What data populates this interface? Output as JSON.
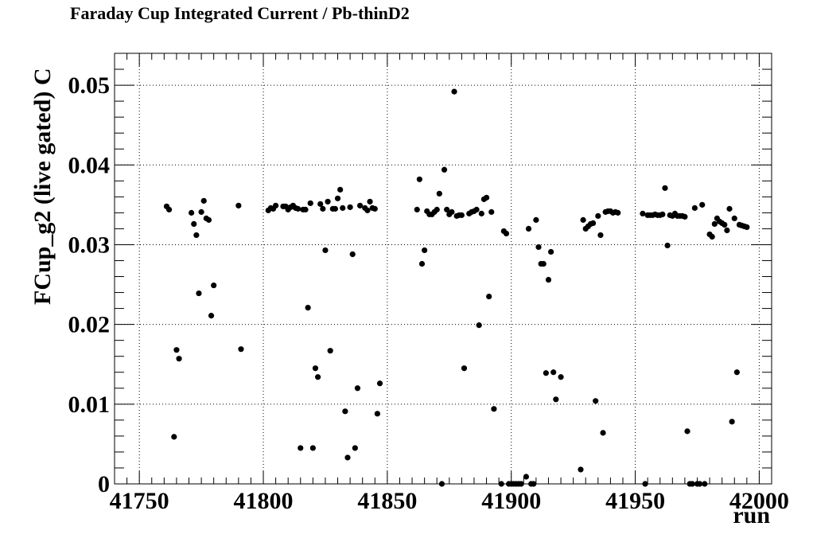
{
  "chart_data": {
    "type": "scatter",
    "title": "Faraday Cup Integrated Current / Pb-thinD2",
    "xlabel": "run",
    "ylabel": "FCup_g2 (live gated) C",
    "xlim": [
      41740,
      42005
    ],
    "ylim": [
      0,
      0.054
    ],
    "xticks": [
      41750,
      41800,
      41850,
      41900,
      41950,
      42000
    ],
    "yticks": [
      0,
      0.01,
      0.02,
      0.03,
      0.04,
      0.05
    ],
    "ytick_labels": [
      "0",
      "0.01",
      "0.02",
      "0.03",
      "0.04",
      "0.05"
    ],
    "grid": true,
    "marker_color": "#000000",
    "points": [
      [
        41761,
        0.0348
      ],
      [
        41762,
        0.0344
      ],
      [
        41764,
        0.0059
      ],
      [
        41765,
        0.0168
      ],
      [
        41766,
        0.0157
      ],
      [
        41771,
        0.034
      ],
      [
        41772,
        0.0326
      ],
      [
        41773,
        0.0312
      ],
      [
        41774,
        0.0239
      ],
      [
        41775,
        0.0341
      ],
      [
        41776,
        0.0355
      ],
      [
        41777,
        0.0333
      ],
      [
        41778,
        0.0331
      ],
      [
        41779,
        0.0211
      ],
      [
        41780,
        0.0249
      ],
      [
        41790,
        0.0349
      ],
      [
        41791,
        0.0169
      ],
      [
        41802,
        0.0343
      ],
      [
        41803,
        0.0346
      ],
      [
        41804,
        0.0345
      ],
      [
        41805,
        0.0349
      ],
      [
        41808,
        0.0348
      ],
      [
        41809,
        0.0348
      ],
      [
        41810,
        0.0344
      ],
      [
        41811,
        0.0347
      ],
      [
        41812,
        0.0349
      ],
      [
        41813,
        0.0346
      ],
      [
        41814,
        0.0345
      ],
      [
        41815,
        0.0045
      ],
      [
        41816,
        0.0344
      ],
      [
        41817,
        0.0344
      ],
      [
        41818,
        0.0221
      ],
      [
        41819,
        0.0352
      ],
      [
        41820,
        0.0045
      ],
      [
        41821,
        0.0145
      ],
      [
        41822,
        0.0134
      ],
      [
        41823,
        0.0351
      ],
      [
        41824,
        0.0345
      ],
      [
        41825,
        0.0293
      ],
      [
        41826,
        0.0354
      ],
      [
        41827,
        0.0167
      ],
      [
        41828,
        0.0345
      ],
      [
        41829,
        0.0345
      ],
      [
        41830,
        0.0358
      ],
      [
        41831,
        0.0369
      ],
      [
        41832,
        0.0346
      ],
      [
        41833,
        0.0091
      ],
      [
        41834,
        0.0033
      ],
      [
        41835,
        0.0347
      ],
      [
        41836,
        0.0288
      ],
      [
        41837,
        0.0045
      ],
      [
        41838,
        0.012
      ],
      [
        41839,
        0.0349
      ],
      [
        41841,
        0.0346
      ],
      [
        41842,
        0.0343
      ],
      [
        41843,
        0.0354
      ],
      [
        41844,
        0.0346
      ],
      [
        41845,
        0.0345
      ],
      [
        41846,
        0.0088
      ],
      [
        41847,
        0.0126
      ],
      [
        41862,
        0.0344
      ],
      [
        41863,
        0.0382
      ],
      [
        41864,
        0.0276
      ],
      [
        41865,
        0.0293
      ],
      [
        41866,
        0.0342
      ],
      [
        41867,
        0.0338
      ],
      [
        41868,
        0.0338
      ],
      [
        41869,
        0.0341
      ],
      [
        41870,
        0.0344
      ],
      [
        41871,
        0.0364
      ],
      [
        41872,
        0.0
      ],
      [
        41873,
        0.0394
      ],
      [
        41874,
        0.0344
      ],
      [
        41875,
        0.0338
      ],
      [
        41876,
        0.0341
      ],
      [
        41877,
        0.0492
      ],
      [
        41878,
        0.0336
      ],
      [
        41879,
        0.0337
      ],
      [
        41880,
        0.0337
      ],
      [
        41881,
        0.0145
      ],
      [
        41883,
        0.0339
      ],
      [
        41884,
        0.0341
      ],
      [
        41885,
        0.0342
      ],
      [
        41886,
        0.0344
      ],
      [
        41887,
        0.0199
      ],
      [
        41888,
        0.0339
      ],
      [
        41889,
        0.0357
      ],
      [
        41890,
        0.0359
      ],
      [
        41891,
        0.0235
      ],
      [
        41892,
        0.0341
      ],
      [
        41893,
        0.0094
      ],
      [
        41896,
        0.0
      ],
      [
        41897,
        0.0317
      ],
      [
        41898,
        0.0314
      ],
      [
        41899,
        0.0
      ],
      [
        41900,
        0.0
      ],
      [
        41901,
        0.0
      ],
      [
        41902,
        0.0
      ],
      [
        41903,
        0.0
      ],
      [
        41904,
        0.0
      ],
      [
        41906,
        0.0009
      ],
      [
        41907,
        0.032
      ],
      [
        41908,
        0.0
      ],
      [
        41909,
        0.0
      ],
      [
        41910,
        0.0331
      ],
      [
        41911,
        0.0297
      ],
      [
        41912,
        0.0276
      ],
      [
        41913,
        0.0276
      ],
      [
        41914,
        0.0139
      ],
      [
        41915,
        0.0256
      ],
      [
        41916,
        0.0291
      ],
      [
        41917,
        0.014
      ],
      [
        41918,
        0.0106
      ],
      [
        41920,
        0.0134
      ],
      [
        41928,
        0.0018
      ],
      [
        41929,
        0.0331
      ],
      [
        41930,
        0.032
      ],
      [
        41931,
        0.0323
      ],
      [
        41932,
        0.0326
      ],
      [
        41933,
        0.0327
      ],
      [
        41934,
        0.0104
      ],
      [
        41935,
        0.0336
      ],
      [
        41936,
        0.0312
      ],
      [
        41937,
        0.0064
      ],
      [
        41938,
        0.0341
      ],
      [
        41939,
        0.0342
      ],
      [
        41940,
        0.0342
      ],
      [
        41941,
        0.034
      ],
      [
        41942,
        0.0341
      ],
      [
        41943,
        0.034
      ],
      [
        41953,
        0.0339
      ],
      [
        41954,
        0.0
      ],
      [
        41955,
        0.0337
      ],
      [
        41956,
        0.0337
      ],
      [
        41957,
        0.0337
      ],
      [
        41958,
        0.0338
      ],
      [
        41959,
        0.0337
      ],
      [
        41960,
        0.0337
      ],
      [
        41961,
        0.0338
      ],
      [
        41962,
        0.0371
      ],
      [
        41963,
        0.0299
      ],
      [
        41964,
        0.0337
      ],
      [
        41965,
        0.0336
      ],
      [
        41966,
        0.0339
      ],
      [
        41967,
        0.0336
      ],
      [
        41968,
        0.0336
      ],
      [
        41969,
        0.0336
      ],
      [
        41970,
        0.0335
      ],
      [
        41971,
        0.0066
      ],
      [
        41972,
        0.0
      ],
      [
        41973,
        0.0
      ],
      [
        41974,
        0.0346
      ],
      [
        41975,
        0.0
      ],
      [
        41976,
        0.0
      ],
      [
        41977,
        0.035
      ],
      [
        41978,
        0.0
      ],
      [
        41980,
        0.0313
      ],
      [
        41981,
        0.031
      ],
      [
        41982,
        0.0326
      ],
      [
        41983,
        0.0333
      ],
      [
        41984,
        0.0329
      ],
      [
        41985,
        0.0327
      ],
      [
        41986,
        0.0325
      ],
      [
        41987,
        0.0318
      ],
      [
        41988,
        0.0345
      ],
      [
        41989,
        0.0078
      ],
      [
        41990,
        0.0333
      ],
      [
        41991,
        0.014
      ],
      [
        41992,
        0.0325
      ],
      [
        41993,
        0.0324
      ],
      [
        41994,
        0.0323
      ],
      [
        41995,
        0.0322
      ]
    ]
  }
}
